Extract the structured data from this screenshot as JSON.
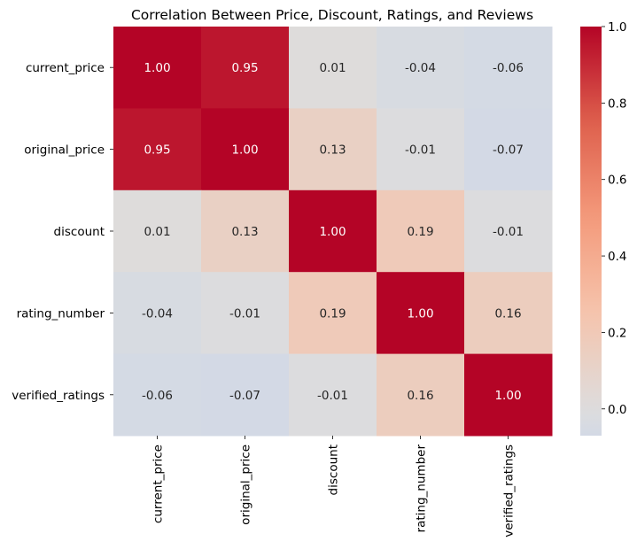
{
  "chart_data": {
    "type": "heatmap",
    "title": "Correlation Between Price, Discount, Ratings, and Reviews",
    "rows": [
      "current_price",
      "original_price",
      "discount",
      "rating_number",
      "verified_ratings"
    ],
    "columns": [
      "current_price",
      "original_price",
      "discount",
      "rating_number",
      "verified_ratings"
    ],
    "values": [
      [
        1.0,
        0.95,
        0.01,
        -0.04,
        -0.06
      ],
      [
        0.95,
        1.0,
        0.13,
        -0.01,
        -0.07
      ],
      [
        0.01,
        0.13,
        1.0,
        0.19,
        -0.01
      ],
      [
        -0.04,
        -0.01,
        0.19,
        1.0,
        0.16
      ],
      [
        -0.06,
        -0.07,
        -0.01,
        0.16,
        1.0
      ]
    ],
    "cell_labels_format": "0.00",
    "colormap": "coolwarm",
    "colorbar": {
      "range": [
        -0.07,
        1.0
      ],
      "ticks": [
        "0.0",
        "0.2",
        "0.4",
        "0.6",
        "0.8",
        "1.0"
      ]
    }
  }
}
